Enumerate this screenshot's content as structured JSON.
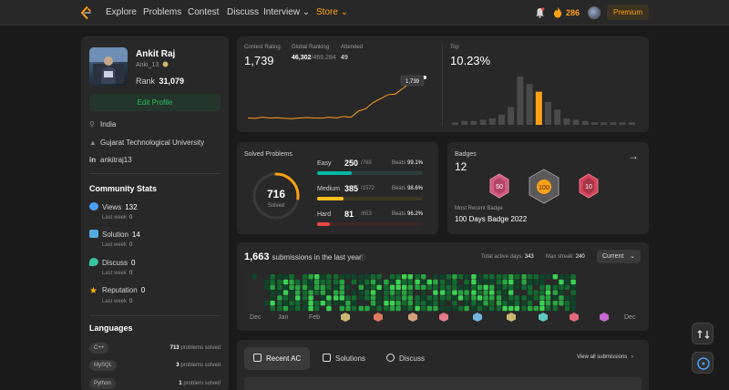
{
  "nav": {
    "items": [
      "Explore",
      "Problems",
      "Contest",
      "Discuss",
      "Interview ⌄",
      "Store ⌄"
    ],
    "streak": "286",
    "premium": "Premium"
  },
  "profile": {
    "name": "Ankit Raj",
    "username": "Anki_13",
    "rank_label": "Rank",
    "rank": "31,079",
    "edit_label": "Edit Profile",
    "location": "India",
    "university": "Gujarat Technological University",
    "linkedin": "ankitraj13"
  },
  "community": {
    "title": "Community Stats",
    "stats": [
      {
        "label": "Views",
        "value": "132",
        "sub_label": "Last week",
        "sub_value": "0",
        "color": "#4a9ff5"
      },
      {
        "label": "Solution",
        "value": "14",
        "sub_label": "Last week",
        "sub_value": "0",
        "color": "#55aadd"
      },
      {
        "label": "Discuss",
        "value": "0",
        "sub_label": "Last week",
        "sub_value": "0",
        "color": "#36c4a0"
      },
      {
        "label": "Reputation",
        "value": "0",
        "sub_label": "Last week",
        "sub_value": "0",
        "color": "#ffb800"
      }
    ]
  },
  "languages": {
    "title": "Languages",
    "items": [
      {
        "name": "C++",
        "count": "713",
        "suffix": "problems solved"
      },
      {
        "name": "MySQL",
        "count": "3",
        "suffix": "problems solved"
      },
      {
        "name": "Python",
        "count": "1",
        "suffix": "problem solved"
      }
    ]
  },
  "contest": {
    "rating_label": "Contest Rating",
    "rating": "1,739",
    "global_label": "Global Ranking",
    "global_rank": "46,302",
    "global_total": "/469,284",
    "attended_label": "Attended",
    "attended": "49",
    "tooltip": "1,739",
    "top_label": "Top",
    "top_value": "10.23%"
  },
  "chart_data": [
    {
      "type": "line",
      "title": "",
      "x": [
        1,
        2,
        3,
        4,
        5,
        6,
        7,
        8,
        9,
        10,
        11,
        12,
        13,
        14,
        15,
        16,
        17,
        18,
        19,
        20,
        21,
        22,
        23,
        24
      ],
      "values": [
        1500,
        1498,
        1505,
        1500,
        1502,
        1498,
        1496,
        1500,
        1503,
        1500,
        1499,
        1505,
        1501,
        1510,
        1505,
        1545,
        1560,
        1600,
        1625,
        1650,
        1655,
        1690,
        1725,
        1739
      ],
      "ylim": [
        1450,
        1780
      ],
      "color": "#ffa116"
    },
    {
      "type": "bar",
      "title": "",
      "values": [
        2,
        3,
        3,
        4,
        5,
        8,
        14,
        38,
        32,
        26,
        18,
        12,
        5,
        4,
        3,
        2,
        2,
        2,
        2,
        2
      ],
      "highlight_index": 9,
      "ylim": [
        0,
        40
      ],
      "color": "#4a4a4a",
      "highlight_color": "#ffa116"
    }
  ],
  "solved": {
    "title": "Solved Problems",
    "total": "716",
    "total_label": "Solved",
    "progress": 0.27,
    "difficulties": [
      {
        "name": "Easy",
        "solved": "250",
        "total": "/768",
        "beats": "99.1%",
        "fraction": 0.33,
        "color": "#00b8a3",
        "track": "#2a3d3a"
      },
      {
        "name": "Medium",
        "solved": "385",
        "total": "/1572",
        "beats": "98.6%",
        "fraction": 0.25,
        "color": "#ffc01e",
        "track": "#3d3822"
      },
      {
        "name": "Hard",
        "solved": "81",
        "total": "/653",
        "beats": "96.2%",
        "fraction": 0.12,
        "color": "#ef4743",
        "track": "#3d2727"
      }
    ],
    "beats_label": "Beats"
  },
  "badges": {
    "title": "Badges",
    "count": "12",
    "recent_label": "Most Recent Badge",
    "recent_name": "100 Days Badge 2022"
  },
  "submissions": {
    "count": "1,663",
    "label": "submissions in the last year",
    "active_label": "Total active days:",
    "active_days": "343",
    "streak_label": "Max streak:",
    "max_streak": "240",
    "select": "Current",
    "months": [
      "Dec",
      "Jan",
      "Feb",
      "Dec"
    ]
  },
  "recent_ac": {
    "tabs": [
      "Recent AC",
      "Solutions",
      "Discuss"
    ],
    "view_all": "View all submissions"
  }
}
